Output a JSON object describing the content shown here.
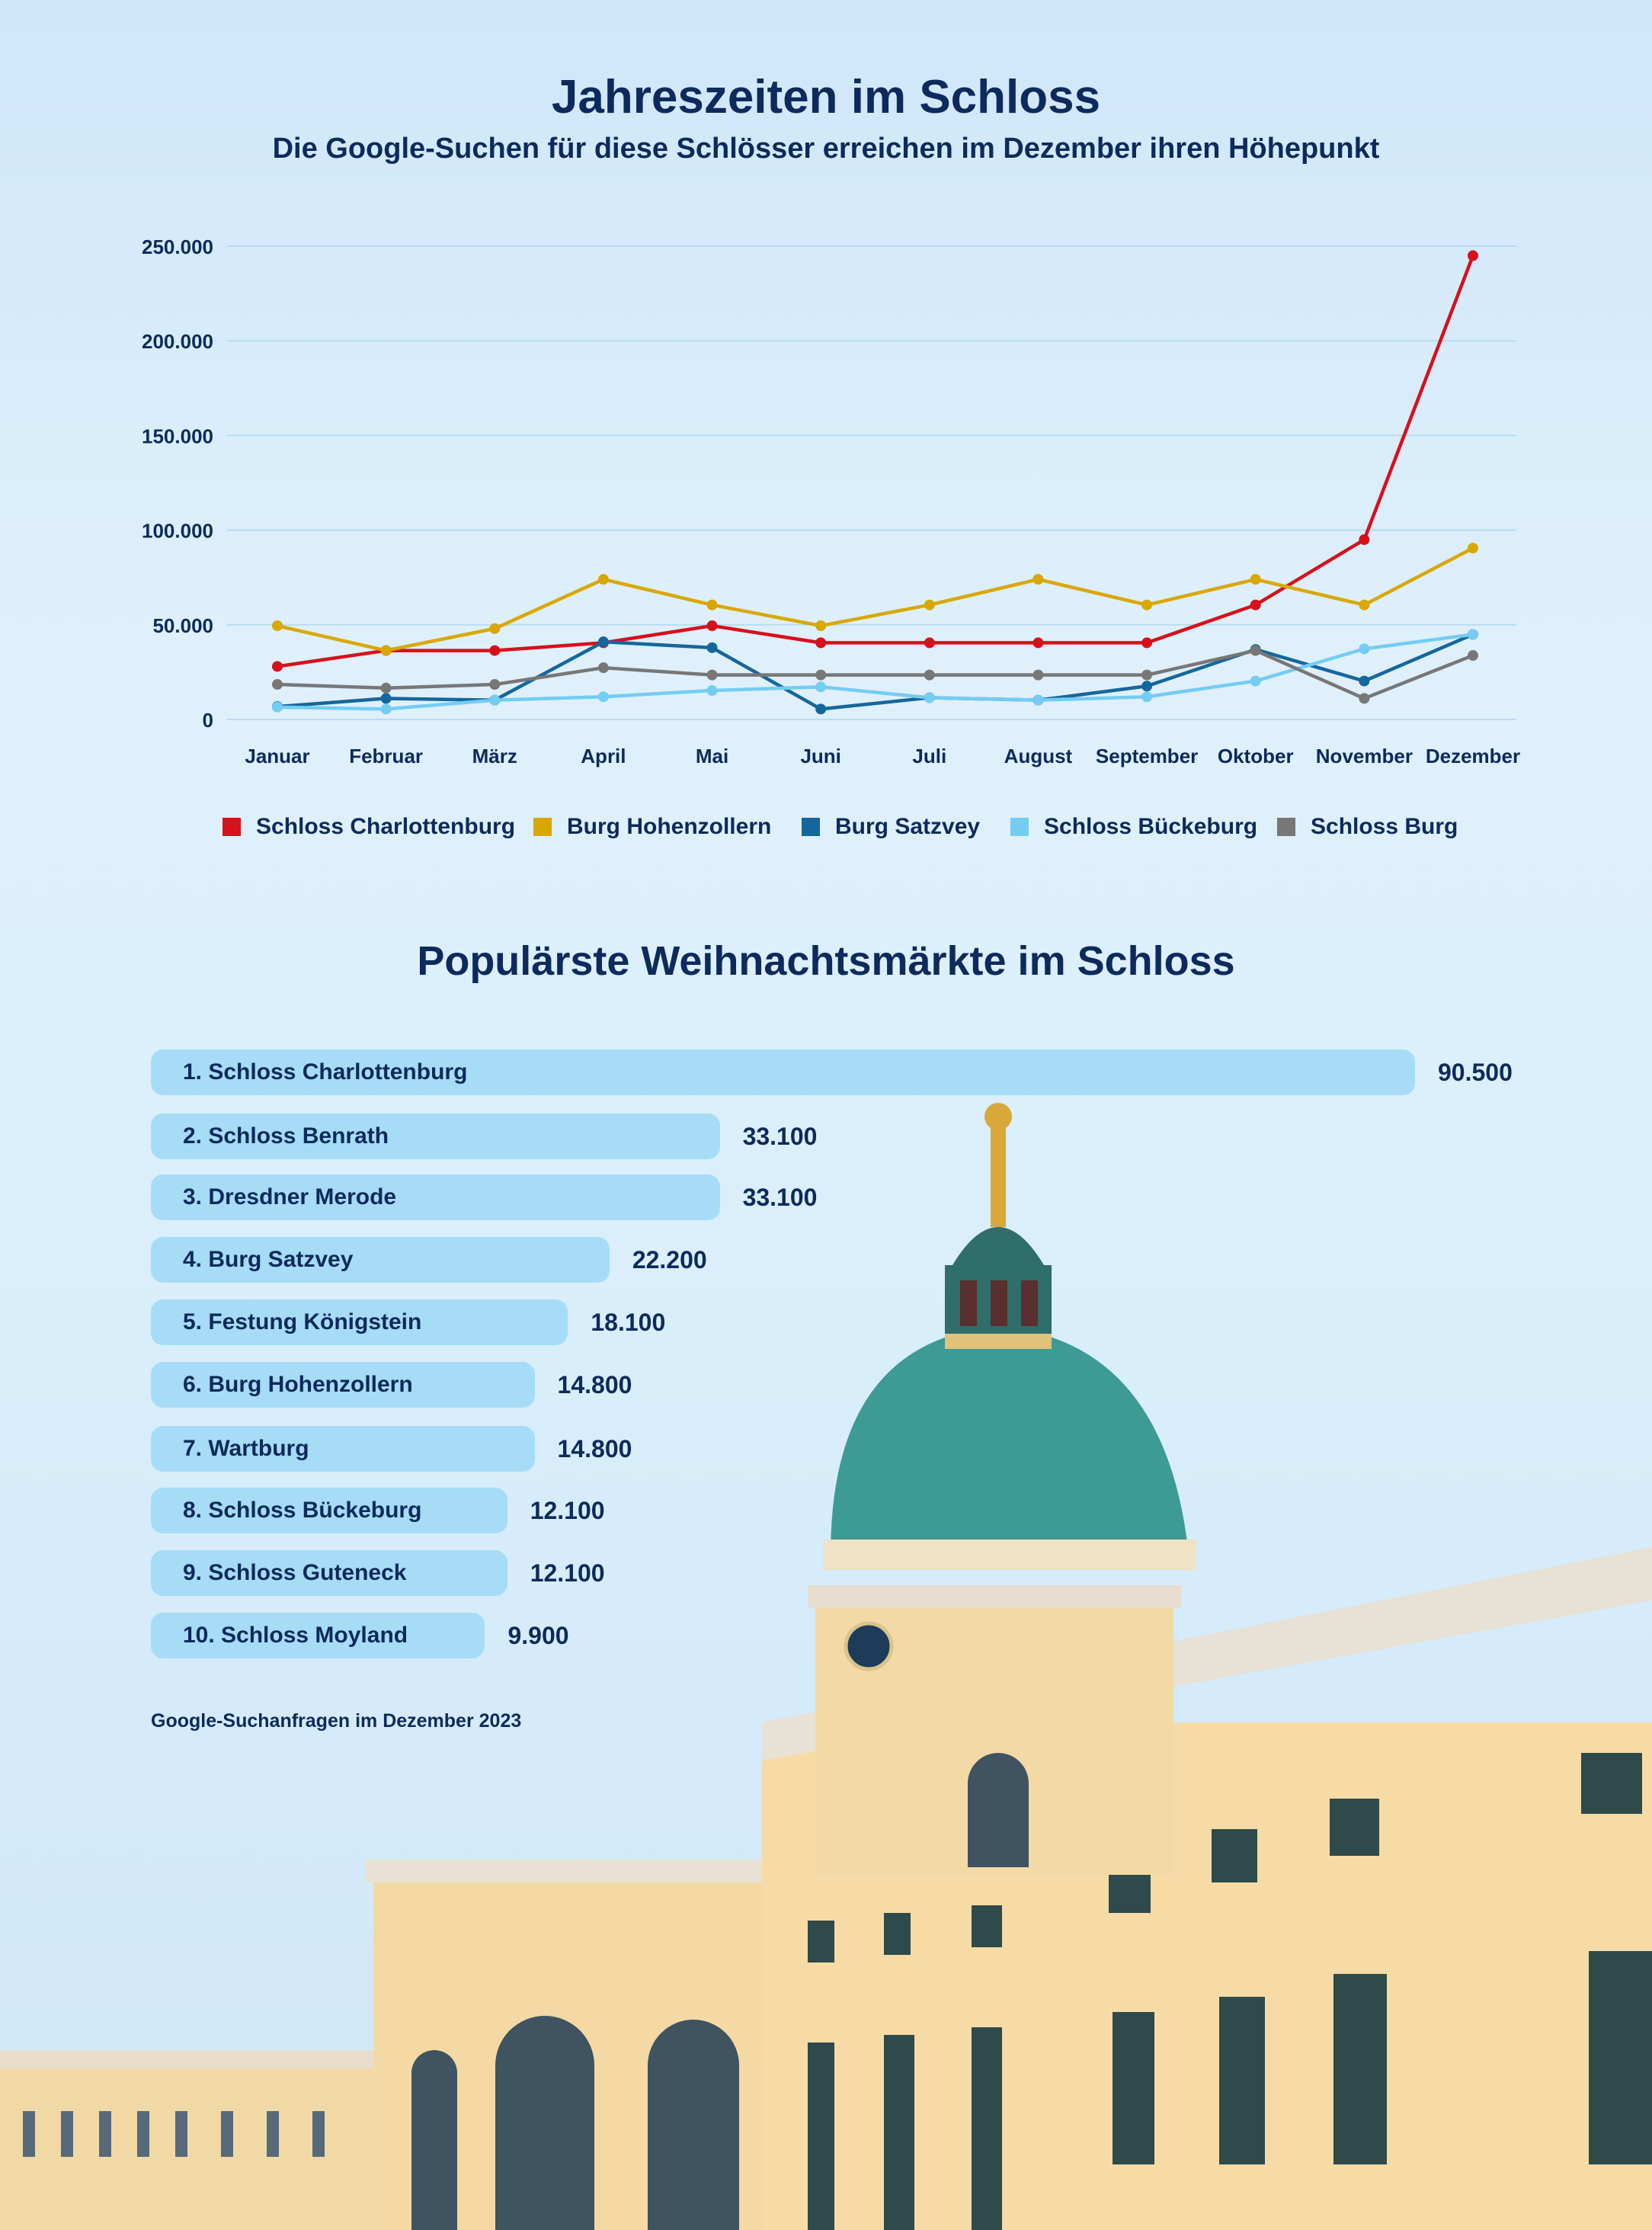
{
  "header": {
    "title": "Jahreszeiten im Schloss",
    "subtitle": "Die Google-Suchen für diese Schlösser erreichen im Dezember ihren Höhepunkt"
  },
  "chart_data": {
    "type": "line",
    "title": "Jahreszeiten im Schloss",
    "subtitle": "Die Google-Suchen für diese Schlösser erreichen im Dezember ihren Höhepunkt",
    "xlabel": "",
    "ylabel": "",
    "ylim": [
      0,
      250000
    ],
    "yticks": [
      {
        "v": 0,
        "label": "0"
      },
      {
        "v": 50000,
        "label": "50.000"
      },
      {
        "v": 100000,
        "label": "100.000"
      },
      {
        "v": 150000,
        "label": "150.000"
      },
      {
        "v": 200000,
        "label": "200.000"
      },
      {
        "v": 250000,
        "label": "250.000"
      }
    ],
    "grid": true,
    "legend_position": "bottom",
    "categories": [
      "Januar",
      "Februar",
      "März",
      "April",
      "Mai",
      "Juni",
      "Juli",
      "August",
      "September",
      "Oktober",
      "November",
      "Dezember"
    ],
    "series": [
      {
        "name": "Schloss Charlottenburg",
        "color": "#d7101c",
        "values": [
          28000,
          36400,
          36400,
          40500,
          49500,
          40500,
          40500,
          40500,
          40500,
          60500,
          95000,
          245000
        ]
      },
      {
        "name": "Burg Hohenzollern",
        "color": "#d8a800",
        "values": [
          49500,
          36400,
          48000,
          74000,
          60500,
          49500,
          60500,
          74000,
          60500,
          74000,
          60500,
          90500
        ]
      },
      {
        "name": "Burg Satzvey",
        "color": "#14679c",
        "values": [
          6800,
          11100,
          10200,
          41000,
          37900,
          5500,
          11500,
          10200,
          17600,
          37000,
          20300,
          44900
        ]
      },
      {
        "name": "Schloss Bückeburg",
        "color": "#74ccf3",
        "values": [
          6500,
          5500,
          10200,
          12000,
          15300,
          17200,
          11500,
          10200,
          12000,
          20300,
          37300,
          44900
        ]
      },
      {
        "name": "Schloss Burg",
        "color": "#777777",
        "values": [
          18500,
          16600,
          18500,
          27300,
          23500,
          23500,
          23500,
          23500,
          23500,
          36400,
          11100,
          33800
        ]
      }
    ]
  },
  "ranking": {
    "title": "Populärste Weihnachtsmärkte im Schloss",
    "items": [
      {
        "label": "1. Schloss Charlottenburg",
        "value": 90500,
        "value_label": "90.500"
      },
      {
        "label": "2. Schloss Benrath",
        "value": 33100,
        "value_label": "33.100"
      },
      {
        "label": "3. Dresdner Merode",
        "value": 33100,
        "value_label": "33.100"
      },
      {
        "label": "4. Burg Satzvey",
        "value": 22200,
        "value_label": "22.200"
      },
      {
        "label": "5. Festung Königstein",
        "value": 18100,
        "value_label": "18.100"
      },
      {
        "label": "6. Burg Hohenzollern",
        "value": 14800,
        "value_label": "14.800"
      },
      {
        "label": "7. Wartburg",
        "value": 14800,
        "value_label": "14.800"
      },
      {
        "label": "8. Schloss Bückeburg",
        "value": 12100,
        "value_label": "12.100"
      },
      {
        "label": "9. Schloss Guteneck",
        "value": 12100,
        "value_label": "12.100"
      },
      {
        "label": "10. Schloss Moyland",
        "value": 9900,
        "value_label": "9.900"
      }
    ],
    "footnote": "Google-Suchanfragen im Dezember 2023"
  },
  "colors": {
    "text": "#0d2a5c",
    "bar": "#a6dcf6"
  }
}
